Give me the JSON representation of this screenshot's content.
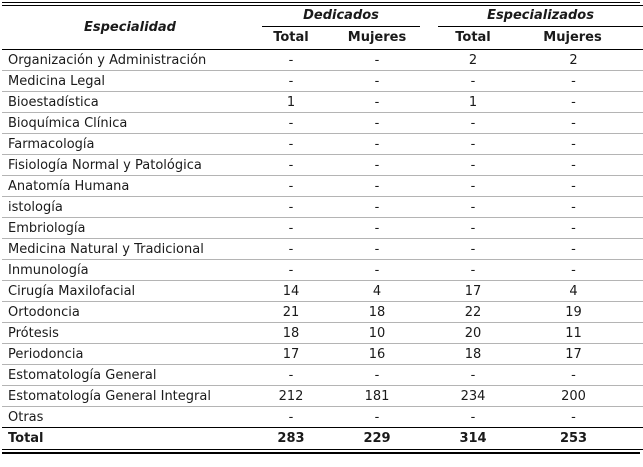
{
  "colors": {
    "background": "#ffffff",
    "text": "#1a1a1a",
    "rule": "#000000",
    "row_separator": "#b4b4b4"
  },
  "table": {
    "col_especialidad": "Especialidad",
    "group_headers": [
      "Dedicados",
      "Especializados"
    ],
    "sub_headers": [
      "Total",
      "Mujeres",
      "Total",
      "Mujeres"
    ],
    "rows": [
      {
        "especialidad": "Organización y Administración",
        "values": [
          "-",
          "-",
          "2",
          "2"
        ]
      },
      {
        "especialidad": "Medicina Legal",
        "values": [
          "-",
          "-",
          "-",
          "-"
        ]
      },
      {
        "especialidad": "Bioestadística",
        "values": [
          "1",
          "-",
          "1",
          "-"
        ]
      },
      {
        "especialidad": "Bioquímica Clínica",
        "values": [
          "-",
          "-",
          "-",
          "-"
        ]
      },
      {
        "especialidad": "Farmacología",
        "values": [
          "-",
          "-",
          "-",
          "-"
        ]
      },
      {
        "especialidad": "Fisiología Normal y Patológica",
        "values": [
          "-",
          "-",
          "-",
          "-"
        ]
      },
      {
        "especialidad": "Anatomía Humana",
        "values": [
          "-",
          "-",
          "-",
          "-"
        ]
      },
      {
        "especialidad": "istología",
        "values": [
          "-",
          "-",
          "-",
          "-"
        ]
      },
      {
        "especialidad": "Embriología",
        "values": [
          "-",
          "-",
          "-",
          "-"
        ]
      },
      {
        "especialidad": "Medicina Natural y Tradicional",
        "values": [
          "-",
          "-",
          "-",
          "-"
        ]
      },
      {
        "especialidad": "Inmunología",
        "values": [
          "-",
          "-",
          "-",
          "-"
        ]
      },
      {
        "especialidad": "Cirugía Maxilofacial",
        "values": [
          "14",
          "4",
          "17",
          "4"
        ]
      },
      {
        "especialidad": "Ortodoncia",
        "values": [
          "21",
          "18",
          "22",
          "19"
        ]
      },
      {
        "especialidad": "Prótesis",
        "values": [
          "18",
          "10",
          "20",
          "11"
        ]
      },
      {
        "especialidad": "Periodoncia",
        "values": [
          "17",
          "16",
          "18",
          "17"
        ]
      },
      {
        "especialidad": "Estomatología General",
        "values": [
          "-",
          "-",
          "-",
          "-"
        ]
      },
      {
        "especialidad": "Estomatología General Integral",
        "values": [
          "212",
          "181",
          "234",
          "200"
        ]
      },
      {
        "especialidad": "Otras",
        "values": [
          "-",
          "-",
          "-",
          "-"
        ]
      }
    ],
    "total_row": {
      "label": "Total",
      "values": [
        "283",
        "229",
        "314",
        "253"
      ]
    }
  }
}
